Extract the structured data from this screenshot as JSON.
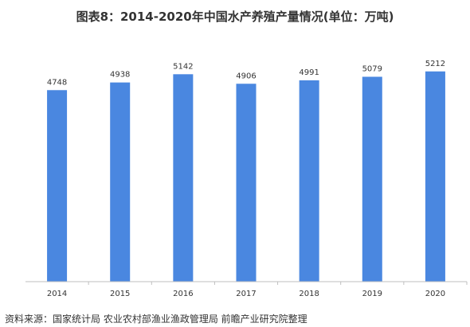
{
  "title": "图表8：2014-2020年中国水产养殖产量情况(单位：万吨)",
  "source": "资料来源：国家统计局 农业农村部渔业渔政管理局 前瞻产业研究院整理",
  "colors": {
    "bar": "#4A87E0",
    "axis": "#BFBFBF",
    "text": "#333333"
  },
  "chart_data": {
    "type": "bar",
    "title": "图表8：2014-2020年中国水产养殖产量情况(单位：万吨)",
    "xlabel": "",
    "ylabel": "",
    "ylim": [
      0,
      5500
    ],
    "grid": false,
    "categories": [
      "2014",
      "2015",
      "2016",
      "2017",
      "2018",
      "2019",
      "2020"
    ],
    "values": [
      4748,
      4938,
      5142,
      4906,
      4991,
      5079,
      5212
    ],
    "data_labels": [
      "4748",
      "4938",
      "5142",
      "4906",
      "4991",
      "5079",
      "5212"
    ]
  }
}
